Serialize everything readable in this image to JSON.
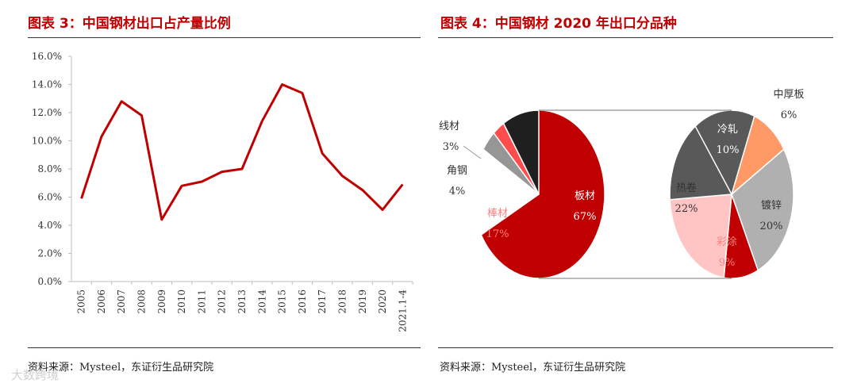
{
  "left": {
    "title": "图表 3：中国钢材出口占产量比例",
    "source": "资料来源：Mysteel，东证衍生品研究院"
  },
  "right": {
    "title": "图表 4：中国钢材 2020 年出口分品种",
    "source": "资料来源：Mysteel，东证衍生品研究院"
  },
  "watermark": "大数跨境",
  "colors": {
    "title": "#c00000",
    "line": "#c00000"
  },
  "chart_data": [
    {
      "type": "line",
      "categories": [
        "2005",
        "2006",
        "2007",
        "2008",
        "2009",
        "2010",
        "2011",
        "2012",
        "2013",
        "2014",
        "2015",
        "2016",
        "2017",
        "2018",
        "2019",
        "2020",
        "2021.1-4"
      ],
      "series": [
        {
          "values": [
            5.9,
            10.3,
            12.8,
            11.8,
            4.4,
            6.8,
            7.1,
            7.8,
            8.0,
            11.4,
            14.0,
            13.4,
            9.1,
            7.5,
            6.5,
            5.1,
            6.9
          ]
        }
      ],
      "ylim": [
        0,
        16
      ],
      "yticks": [
        "0.0%",
        "2.0%",
        "4.0%",
        "6.0%",
        "8.0%",
        "10.0%",
        "12.0%",
        "14.0%",
        "16.0%"
      ],
      "grid": false,
      "color": "#c00000"
    },
    {
      "type": "pie",
      "subtitle": "bar-of-pie",
      "primary": [
        {
          "label": "板材",
          "value": 67,
          "text": "67%",
          "color": "#7f7f7f"
        },
        {
          "label": "棒材",
          "value": 17,
          "text": "17%",
          "color": "#c00000"
        },
        {
          "label": "角钢",
          "value": 4,
          "text": "4%",
          "color": "#969696"
        },
        {
          "label": "线材",
          "value": 3,
          "text": "3%",
          "color": "#ff4d4d"
        },
        {
          "label": "",
          "value": 9,
          "text": "",
          "color": "#1f1f1f"
        }
      ],
      "secondary": [
        {
          "label": "中厚板",
          "value": 6,
          "text": "6%",
          "color": "#ff9966"
        },
        {
          "label": "镀锌",
          "value": 20,
          "text": "20%",
          "color": "#b0b0b0"
        },
        {
          "label": "彩涂",
          "value": 9,
          "text": "9%",
          "color": "#c00000"
        },
        {
          "label": "热卷",
          "value": 22,
          "text": "22%",
          "color": "#ffc4c4"
        },
        {
          "label": "冷轧",
          "value": 10,
          "text": "10%",
          "color": "#595959"
        }
      ]
    }
  ]
}
